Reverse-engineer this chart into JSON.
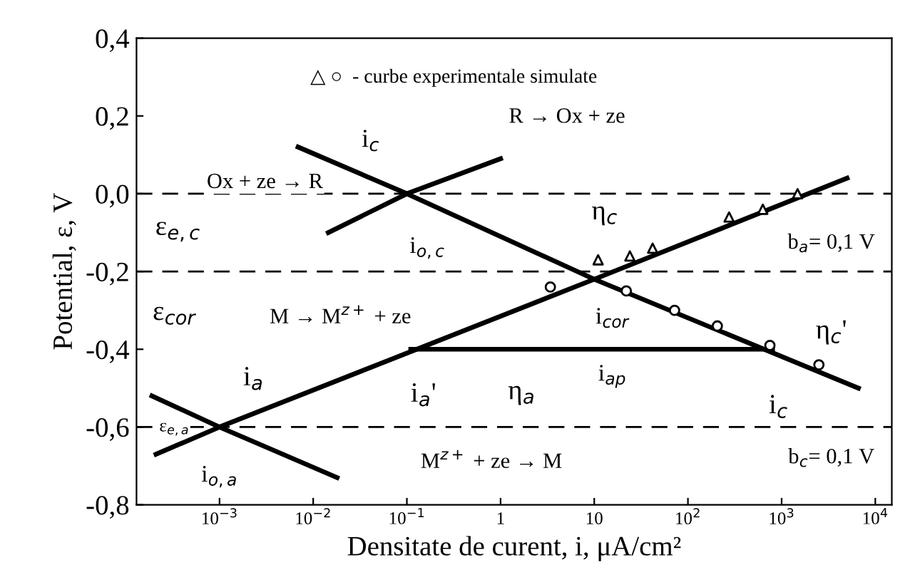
{
  "chart_data": {
    "type": "line",
    "xlabel": "Densitate de curent, i, μA/cm²",
    "ylabel": "Potential, ε, V",
    "log": "x",
    "grid": false,
    "legend": false,
    "xlim": [
      0.00013,
      15000
    ],
    "ylim": [
      -0.8,
      0.4
    ],
    "xticks": [
      {
        "value": 0.001,
        "label": "10$^{−3}$"
      },
      {
        "value": 0.01,
        "label": "10$^{−2}$"
      },
      {
        "value": 0.1,
        "label": "10$^{−1}$"
      },
      {
        "value": 1,
        "label": "1"
      },
      {
        "value": 10,
        "label": "10"
      },
      {
        "value": 100,
        "label": "10$^{2}$"
      },
      {
        "value": 1000,
        "label": "10$^{3}$"
      },
      {
        "value": 10000,
        "label": "10$^{4}$"
      }
    ],
    "yticks": [
      {
        "value": 0.4,
        "label": "0,4"
      },
      {
        "value": 0.2,
        "label": "0,2"
      },
      {
        "value": 0.0,
        "label": "0,0"
      },
      {
        "value": -0.2,
        "label": "-0,2"
      },
      {
        "value": -0.4,
        "label": "-0,4"
      },
      {
        "value": -0.6,
        "label": "-0,6"
      },
      {
        "value": -0.8,
        "label": "-0,8"
      }
    ],
    "series": [
      {
        "color": "#000000",
        "marker": "none",
        "x": [
          0.00021,
          0.001,
          10,
          5000
        ],
        "values": [
          -0.67,
          -0.6,
          -0.22,
          0.04
        ]
      },
      {
        "color": "#000000",
        "marker": "none",
        "x": [
          0.00019,
          0.001,
          0.018
        ],
        "values": [
          -0.52,
          -0.6,
          -0.73
        ]
      },
      {
        "color": "#000000",
        "marker": "none",
        "x": [
          0.0069,
          0.1,
          10,
          6600
        ],
        "values": [
          0.12,
          0.0,
          -0.22,
          -0.5
        ]
      },
      {
        "color": "#000000",
        "marker": "none",
        "x": [
          0.0145,
          0.1,
          1
        ],
        "values": [
          -0.1,
          0.0,
          0.09
        ]
      },
      {
        "color": "#000000",
        "marker": "none",
        "x": [
          0.11,
          800
        ],
        "values": [
          -0.4,
          -0.4
        ]
      },
      {
        "type": "scatter",
        "color": "#000000",
        "marker": "triangle",
        "x": [
          11,
          24,
          42,
          275,
          630,
          1480
        ],
        "values": [
          -0.17,
          -0.16,
          -0.14,
          -0.06,
          -0.04,
          0.0
        ]
      },
      {
        "type": "scatter",
        "color": "#000000",
        "marker": "circle",
        "x": [
          3.4,
          22,
          72,
          206,
          750,
          2500
        ],
        "values": [
          -0.24,
          -0.25,
          -0.3,
          -0.34,
          -0.39,
          -0.44
        ]
      }
    ],
    "ref_lines": [
      {
        "axis": "y",
        "value": 0.0,
        "line_style": "dashed",
        "color": "#000000"
      },
      {
        "axis": "y",
        "value": -0.2,
        "line_style": "dashed",
        "color": "#000000"
      },
      {
        "axis": "y",
        "value": -0.6,
        "line_style": "dashed",
        "color": "#000000"
      }
    ],
    "annotations": [
      "△ ○  - curbe experimentale simulate",
      "i$_{c}$",
      "R → Ox + ze",
      "Ox + ze → R",
      "ε$_{e,c}$",
      "i$_{o,c}$",
      "η$_{c}$",
      "b$_{a}$= 0,1 V",
      "ε$_{cor}$",
      "M → M$^{z+}$ + ze",
      "i$_{cor}$",
      "η$_{c}$'",
      "i$_{a}$",
      "i$_{a}$'",
      "η$_{a}$",
      "i$_{ap}$",
      "i$_{c}$",
      "ε$_{e,a}$",
      "i$_{o,a}$",
      "M$^{z+}$ + ze → M",
      "b$_{c}$= 0,1 V"
    ]
  }
}
